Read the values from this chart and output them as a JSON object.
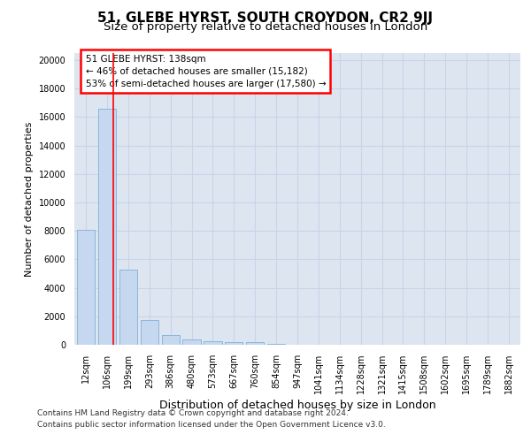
{
  "title": "51, GLEBE HYRST, SOUTH CROYDON, CR2 9JJ",
  "subtitle": "Size of property relative to detached houses in London",
  "xlabel": "Distribution of detached houses by size in London",
  "ylabel": "Number of detached properties",
  "bar_labels": [
    "12sqm",
    "106sqm",
    "199sqm",
    "293sqm",
    "386sqm",
    "480sqm",
    "573sqm",
    "667sqm",
    "760sqm",
    "854sqm",
    "947sqm",
    "1041sqm",
    "1134sqm",
    "1228sqm",
    "1321sqm",
    "1415sqm",
    "1508sqm",
    "1602sqm",
    "1695sqm",
    "1789sqm",
    "1882sqm"
  ],
  "bar_values": [
    8100,
    16600,
    5300,
    1750,
    700,
    350,
    270,
    210,
    200,
    50,
    10,
    5,
    3,
    2,
    1,
    1,
    1,
    0,
    0,
    0,
    0
  ],
  "bar_color": "#c5d8f0",
  "bar_edge_color": "#7fb0d8",
  "red_line_x": 1.3,
  "ann_line1": "51 GLEBE HYRST: 138sqm",
  "ann_line2": "← 46% of detached houses are smaller (15,182)",
  "ann_line3": "53% of semi-detached houses are larger (17,580) →",
  "ylim_max": 20500,
  "yticks": [
    0,
    2000,
    4000,
    6000,
    8000,
    10000,
    12000,
    14000,
    16000,
    18000,
    20000
  ],
  "grid_color": "#c8d4e8",
  "bg_color": "#dde5f0",
  "footer_line1": "Contains HM Land Registry data © Crown copyright and database right 2024.",
  "footer_line2": "Contains public sector information licensed under the Open Government Licence v3.0."
}
